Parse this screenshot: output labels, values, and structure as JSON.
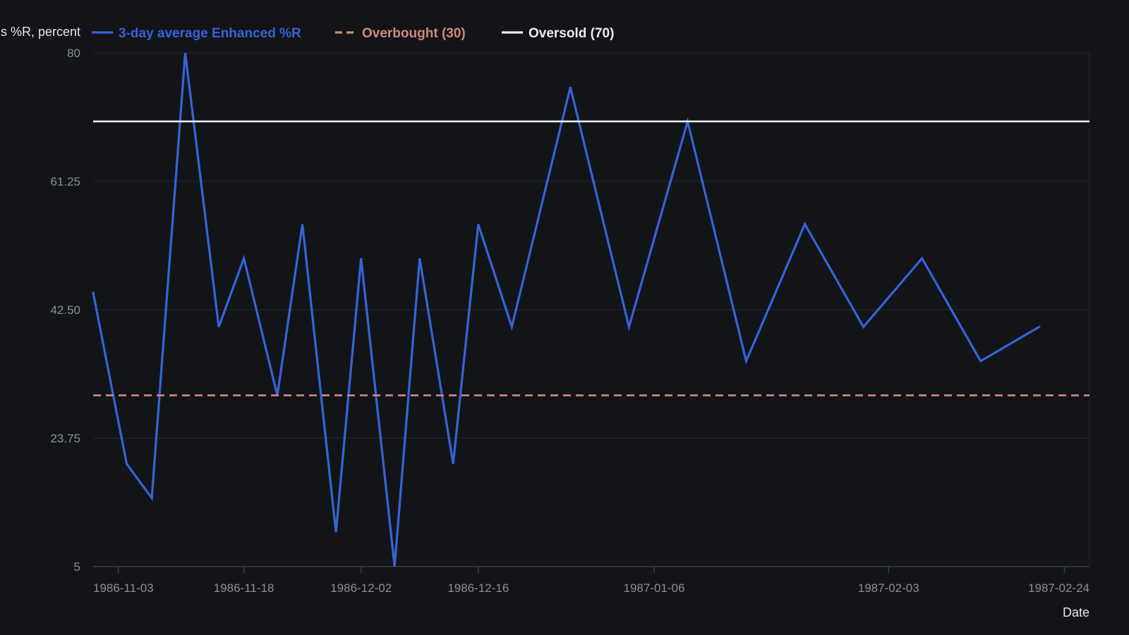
{
  "chart_data": {
    "type": "line",
    "title": "",
    "ylabel": "Williams %R, percent",
    "xlabel": "Date",
    "ylim": [
      5,
      80
    ],
    "xlim": [
      "1986-10-31",
      "1987-02-27"
    ],
    "y_ticks": [
      "80",
      "61.25",
      "42.50",
      "23.75",
      "5"
    ],
    "x_ticks": [
      "1986-11-03",
      "1986-11-18",
      "1986-12-02",
      "1986-12-16",
      "1987-01-06",
      "1987-02-03",
      "1987-02-24"
    ],
    "grid": true,
    "legend_position": "top-left",
    "series": [
      {
        "name": "3-day average Enhanced %R",
        "color": "#3563d9",
        "style": "solid",
        "points": [
          {
            "x": "1986-10-31",
            "y": 45
          },
          {
            "x": "1986-11-04",
            "y": 20
          },
          {
            "x": "1986-11-07",
            "y": 15
          },
          {
            "x": "1986-11-11",
            "y": 80
          },
          {
            "x": "1986-11-15",
            "y": 40
          },
          {
            "x": "1986-11-18",
            "y": 50
          },
          {
            "x": "1986-11-22",
            "y": 30
          },
          {
            "x": "1986-11-25",
            "y": 55
          },
          {
            "x": "1986-11-29",
            "y": 10
          },
          {
            "x": "1986-12-02",
            "y": 50
          },
          {
            "x": "1986-12-06",
            "y": 5
          },
          {
            "x": "1986-12-09",
            "y": 50
          },
          {
            "x": "1986-12-13",
            "y": 20
          },
          {
            "x": "1986-12-16",
            "y": 55
          },
          {
            "x": "1986-12-20",
            "y": 40
          },
          {
            "x": "1986-12-27",
            "y": 75
          },
          {
            "x": "1987-01-03",
            "y": 40
          },
          {
            "x": "1987-01-10",
            "y": 70
          },
          {
            "x": "1987-01-17",
            "y": 35
          },
          {
            "x": "1987-01-24",
            "y": 55
          },
          {
            "x": "1987-01-31",
            "y": 40
          },
          {
            "x": "1987-02-07",
            "y": 50
          },
          {
            "x": "1987-02-14",
            "y": 35
          },
          {
            "x": "1987-02-21",
            "y": 40
          }
        ]
      },
      {
        "name": "Overbought (30)",
        "color": "#d18a7e",
        "style": "dashed",
        "value": 30
      },
      {
        "name": "Oversold (70)",
        "color": "#ececec",
        "style": "solid",
        "value": 70
      }
    ]
  },
  "colors": {
    "background": "#131417",
    "plot_background": "#121418",
    "grid": "#262930",
    "axis": "#3a3d44"
  }
}
